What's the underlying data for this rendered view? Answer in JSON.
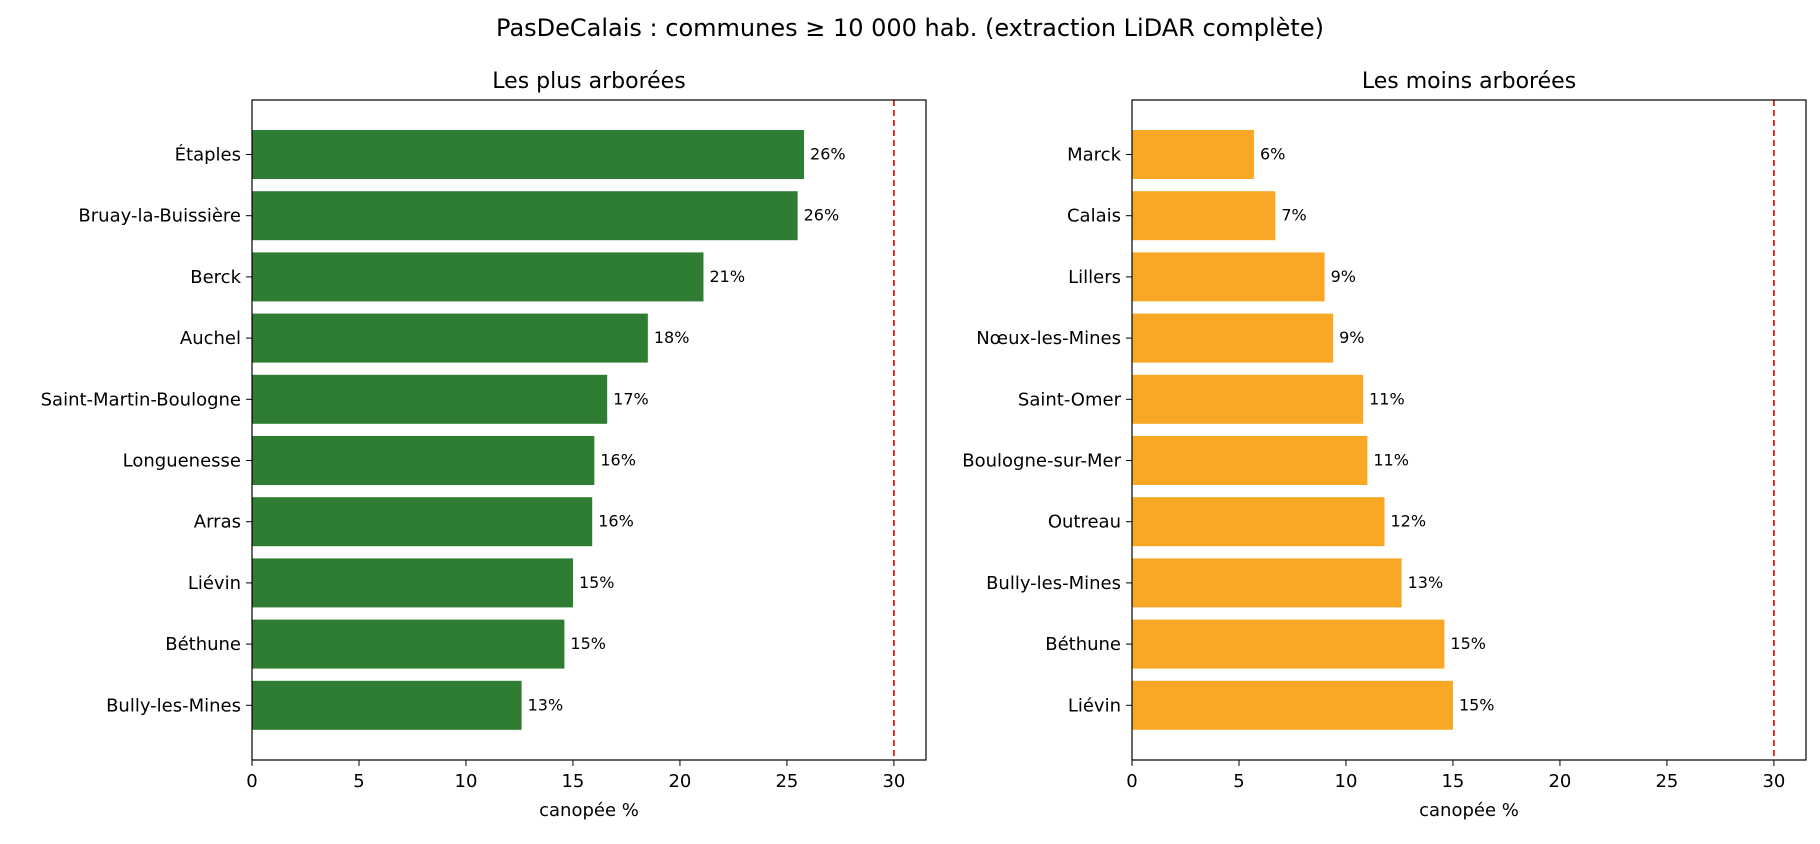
{
  "title": "PasDeCalais : communes ≥ 10 000 hab. (extraction LiDAR complète)",
  "chart_data": [
    {
      "type": "bar",
      "orientation": "horizontal",
      "title": "Les plus arborées",
      "xlabel": "canopée %",
      "ylabel": "",
      "xlim": [
        0,
        31.5
      ],
      "xticks": [
        0,
        5,
        10,
        15,
        20,
        25,
        30
      ],
      "reference_line": 30,
      "color": "#2e7d32",
      "categories": [
        "Étaples",
        "Bruay-la-Buissière",
        "Berck",
        "Auchel",
        "Saint-Martin-Boulogne",
        "Longuenesse",
        "Arras",
        "Liévin",
        "Béthune",
        "Bully-les-Mines"
      ],
      "values": [
        25.8,
        25.5,
        21.1,
        18.5,
        16.6,
        16.0,
        15.9,
        15.0,
        14.6,
        12.6
      ],
      "value_labels": [
        "26%",
        "26%",
        "21%",
        "18%",
        "17%",
        "16%",
        "16%",
        "15%",
        "15%",
        "13%"
      ],
      "grid": false
    },
    {
      "type": "bar",
      "orientation": "horizontal",
      "title": "Les moins arborées",
      "xlabel": "canopée %",
      "ylabel": "",
      "xlim": [
        0,
        31.5
      ],
      "xticks": [
        0,
        5,
        10,
        15,
        20,
        25,
        30
      ],
      "reference_line": 30,
      "color": "#f9a825",
      "categories": [
        "Marck",
        "Calais",
        "Lillers",
        "Nœux-les-Mines",
        "Saint-Omer",
        "Boulogne-sur-Mer",
        "Outreau",
        "Bully-les-Mines",
        "Béthune",
        "Liévin"
      ],
      "values": [
        5.7,
        6.7,
        9.0,
        9.4,
        10.8,
        11.0,
        11.8,
        12.6,
        14.6,
        15.0
      ],
      "value_labels": [
        "6%",
        "7%",
        "9%",
        "9%",
        "11%",
        "11%",
        "12%",
        "13%",
        "15%",
        "15%"
      ],
      "grid": false
    }
  ]
}
